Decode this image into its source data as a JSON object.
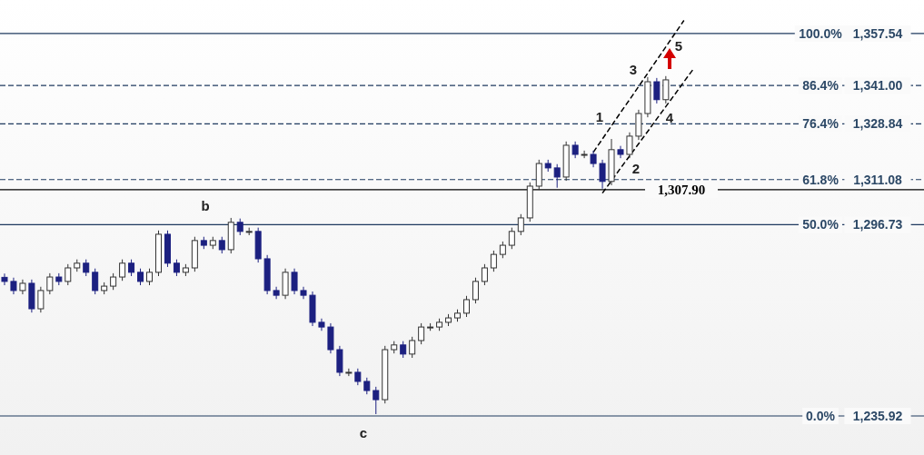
{
  "chart_data": {
    "type": "candlestick",
    "colors": [
      "#1c2080",
      "#1c2080",
      "#ffffff",
      "#1c2080",
      "#ffffff",
      "#ffffff",
      "#1c2080",
      "#ffffff",
      "#ffffff",
      "#1c2080",
      "#1c2080",
      "#ffffff",
      "#ffffff",
      "#ffffff",
      "#1c2080",
      "#1c2080",
      "#ffffff",
      "#ffffff",
      "#1c2080",
      "#1c2080",
      "#ffffff",
      "#ffffff",
      "#1c2080",
      "#ffffff",
      "#1c2080",
      "#ffffff",
      "#1c2080",
      "#ffffff",
      "#1c2080",
      "#1c2080",
      "#1c2080",
      "#ffffff",
      "#1c2080",
      "#1c2080",
      "#1c2080",
      "#1c2080",
      "#1c2080",
      "#1c2080",
      "#ffffff",
      "#1c2080",
      "#1c2080",
      "#1c2080",
      "#ffffff",
      "#ffffff",
      "#1c2080",
      "#ffffff",
      "#ffffff",
      "#ffffff",
      "#ffffff",
      "#ffffff",
      "#ffffff",
      "#ffffff",
      "#ffffff",
      "#ffffff",
      "#ffffff",
      "#ffffff",
      "#ffffff",
      "#ffffff",
      "#ffffff",
      "#ffffff",
      "#1c2080",
      "#1c2080",
      "#ffffff",
      "#1c2080",
      "#ffffff",
      "#1c2080",
      "#1c2080",
      "#ffffff",
      "#1c2080",
      "#ffffff",
      "#ffffff",
      "#ffffff",
      "#1c2080",
      "#ffffff",
      null,
      null,
      null,
      null,
      null,
      null,
      null,
      null,
      null,
      null,
      null,
      null,
      null,
      null,
      null,
      null,
      null,
      null,
      null,
      null,
      null,
      null,
      null,
      null,
      null,
      null,
      null,
      null
    ],
    "ylim": [
      1223.5,
      1368.2
    ],
    "tick_labels": "y",
    "yticks": [
      {
        "value": 1357.54,
        "label": "1,357.54"
      },
      {
        "value": 1341.0,
        "label": "1,341.00"
      },
      {
        "value": 1328.84,
        "label": "1,328.84"
      },
      {
        "value": 1311.08,
        "label": "1,311.08"
      },
      {
        "value": 1296.73,
        "label": "1,296.73"
      },
      {
        "value": 1235.92,
        "label": "1,235.92"
      }
    ],
    "categories": [
      null,
      null,
      null,
      null,
      null,
      null,
      null,
      null,
      null,
      null,
      null,
      null,
      null,
      null,
      null,
      null,
      null,
      null,
      null,
      null,
      null,
      null,
      null,
      null,
      null,
      null,
      null,
      null,
      null,
      null,
      null,
      null,
      null,
      null,
      null,
      null,
      null,
      null,
      null,
      null,
      null,
      null,
      null,
      null,
      null,
      null,
      null,
      null,
      null,
      null,
      null,
      null,
      null,
      null,
      null,
      null,
      null,
      null,
      null,
      null,
      null,
      null,
      null,
      null,
      null,
      null,
      null,
      null,
      null,
      null,
      null,
      null,
      null,
      null,
      null,
      null,
      null,
      null,
      null,
      null,
      null,
      null,
      null,
      null,
      null,
      null,
      null,
      null,
      null,
      null,
      null,
      null,
      null,
      null,
      null,
      null,
      null,
      null,
      null,
      null,
      null,
      null
    ],
    "ohlc": [
      [
        1280.0,
        1281.2,
        1277.5,
        1278.7
      ],
      [
        1278.7,
        1279.9,
        1274.6,
        1275.8
      ],
      [
        1275.8,
        1279.3,
        1274.6,
        1278.1
      ],
      [
        1278.1,
        1279.3,
        1268.8,
        1270.0
      ],
      [
        1270.0,
        1277.0,
        1268.8,
        1275.8
      ],
      [
        1275.8,
        1281.3,
        1274.6,
        1280.1
      ],
      [
        1280.1,
        1281.3,
        1277.5,
        1278.7
      ],
      [
        1278.7,
        1284.2,
        1277.5,
        1283.0
      ],
      [
        1283.0,
        1285.7,
        1281.8,
        1284.5
      ],
      [
        1284.5,
        1285.7,
        1280.4,
        1281.6
      ],
      [
        1281.6,
        1282.8,
        1274.6,
        1275.8
      ],
      [
        1275.8,
        1278.4,
        1274.6,
        1277.2
      ],
      [
        1277.2,
        1281.3,
        1276.0,
        1280.1
      ],
      [
        1280.1,
        1285.7,
        1278.9,
        1284.5
      ],
      [
        1284.5,
        1285.7,
        1280.4,
        1281.6
      ],
      [
        1281.6,
        1282.8,
        1277.5,
        1278.7
      ],
      [
        1278.7,
        1282.8,
        1277.5,
        1281.6
      ],
      [
        1281.6,
        1294.9,
        1280.4,
        1293.7
      ],
      [
        1293.7,
        1294.9,
        1283.3,
        1284.5
      ],
      [
        1284.5,
        1285.7,
        1280.4,
        1281.6
      ],
      [
        1281.6,
        1284.2,
        1280.4,
        1283.0
      ],
      [
        1283.0,
        1292.9,
        1281.8,
        1291.7
      ],
      [
        1291.7,
        1292.9,
        1289.0,
        1290.2
      ],
      [
        1290.2,
        1292.9,
        1289.0,
        1291.7
      ],
      [
        1291.7,
        1292.9,
        1287.6,
        1288.8
      ],
      [
        1288.8,
        1298.9,
        1287.6,
        1297.5
      ],
      [
        1297.5,
        1298.7,
        1293.4,
        1294.6
      ],
      [
        1294.6,
        1295.8,
        1293.4,
        1294.6
      ],
      [
        1294.6,
        1295.8,
        1284.7,
        1285.9
      ],
      [
        1285.9,
        1287.1,
        1274.6,
        1275.8
      ],
      [
        1275.8,
        1277.0,
        1273.1,
        1274.3
      ],
      [
        1274.3,
        1282.8,
        1273.1,
        1281.6
      ],
      [
        1281.6,
        1282.8,
        1274.6,
        1275.8
      ],
      [
        1275.8,
        1277.0,
        1273.1,
        1274.3
      ],
      [
        1274.3,
        1275.5,
        1264.5,
        1265.7
      ],
      [
        1265.7,
        1266.9,
        1263.0,
        1264.2
      ],
      [
        1264.2,
        1265.4,
        1255.8,
        1257.0
      ],
      [
        1257.0,
        1258.2,
        1248.6,
        1249.8
      ],
      [
        1249.8,
        1251.0,
        1248.6,
        1249.8
      ],
      [
        1249.8,
        1251.0,
        1245.7,
        1246.9
      ],
      [
        1246.9,
        1248.1,
        1242.8,
        1244.0
      ],
      [
        1244.0,
        1245.2,
        1236.5,
        1241.1
      ],
      [
        1241.1,
        1258.2,
        1239.9,
        1257.0
      ],
      [
        1257.0,
        1259.7,
        1255.8,
        1258.5
      ],
      [
        1258.5,
        1259.7,
        1254.4,
        1255.6
      ],
      [
        1255.6,
        1261.1,
        1254.4,
        1259.9
      ],
      [
        1259.9,
        1265.4,
        1258.7,
        1264.2
      ],
      [
        1264.2,
        1265.4,
        1263.0,
        1264.2
      ],
      [
        1264.2,
        1266.9,
        1263.0,
        1265.7
      ],
      [
        1265.7,
        1268.3,
        1264.5,
        1267.1
      ],
      [
        1267.1,
        1269.8,
        1265.9,
        1268.6
      ],
      [
        1268.6,
        1274.1,
        1267.4,
        1272.9
      ],
      [
        1272.9,
        1279.9,
        1271.7,
        1278.7
      ],
      [
        1278.7,
        1284.2,
        1277.5,
        1283.0
      ],
      [
        1283.0,
        1288.5,
        1281.8,
        1287.3
      ],
      [
        1287.3,
        1291.4,
        1286.1,
        1290.2
      ],
      [
        1290.2,
        1295.8,
        1289.0,
        1294.6
      ],
      [
        1294.6,
        1300.1,
        1293.4,
        1298.9
      ],
      [
        1298.9,
        1310.2,
        1297.7,
        1309.0
      ],
      [
        1309.0,
        1317.4,
        1307.8,
        1316.2
      ],
      [
        1316.2,
        1317.4,
        1313.6,
        1314.8
      ],
      [
        1314.8,
        1316.0,
        1308.5,
        1311.9
      ],
      [
        1311.9,
        1323.2,
        1310.7,
        1322.0
      ],
      [
        1322.0,
        1323.2,
        1317.9,
        1319.1
      ],
      [
        1319.1,
        1320.3,
        1317.9,
        1319.1
      ],
      [
        1319.1,
        1320.3,
        1315.0,
        1316.2
      ],
      [
        1316.2,
        1317.4,
        1308.2,
        1310.5
      ],
      [
        1310.5,
        1324.0,
        1309.3,
        1320.6
      ],
      [
        1320.6,
        1321.8,
        1317.9,
        1319.1
      ],
      [
        1319.1,
        1326.1,
        1317.9,
        1324.9
      ],
      [
        1324.9,
        1333.3,
        1323.7,
        1332.1
      ],
      [
        1332.1,
        1343.7,
        1330.9,
        1342.2
      ],
      [
        1342.2,
        1343.4,
        1335.3,
        1336.5
      ],
      [
        1336.5,
        1344.0,
        1335.3,
        1342.8
      ],
      null,
      null,
      null,
      null,
      null,
      null,
      null,
      null,
      null,
      null,
      null,
      null,
      null,
      null,
      null,
      null,
      null,
      null,
      null,
      null,
      null,
      null,
      null,
      null,
      null,
      null,
      null,
      null
    ],
    "series": [
      {
        "type": "line",
        "color": "#000000",
        "line_style": "dashed",
        "values": [
          null,
          null,
          null,
          null,
          null,
          null,
          null,
          null,
          null,
          null,
          null,
          null,
          null,
          null,
          null,
          null,
          null,
          null,
          null,
          null,
          null,
          null,
          null,
          null,
          null,
          null,
          null,
          null,
          null,
          null,
          null,
          null,
          null,
          null,
          null,
          null,
          null,
          null,
          null,
          null,
          null,
          null,
          null,
          null,
          null,
          null,
          null,
          null,
          null,
          null,
          null,
          null,
          null,
          null,
          null,
          null,
          null,
          null,
          null,
          null,
          null,
          null,
          null,
          null,
          null,
          1319.8,
          1324.0,
          1328.2,
          1332.4,
          1336.5,
          1340.7,
          1344.9,
          1349.1,
          1353.3,
          1357.5,
          1361.7,
          null,
          null,
          null,
          null,
          null,
          null,
          null,
          null,
          null,
          null,
          null,
          null,
          null,
          null,
          null,
          null,
          null,
          null,
          null,
          null,
          null,
          null,
          null,
          null,
          null,
          null
        ]
      },
      {
        "type": "line",
        "color": "#000000",
        "line_style": "dashed",
        "values": [
          null,
          null,
          null,
          null,
          null,
          null,
          null,
          null,
          null,
          null,
          null,
          null,
          null,
          null,
          null,
          null,
          null,
          null,
          null,
          null,
          null,
          null,
          null,
          null,
          null,
          null,
          null,
          null,
          null,
          null,
          null,
          null,
          null,
          null,
          null,
          null,
          null,
          null,
          null,
          null,
          null,
          null,
          null,
          null,
          null,
          null,
          null,
          null,
          null,
          null,
          null,
          null,
          null,
          null,
          null,
          null,
          null,
          null,
          null,
          null,
          null,
          null,
          null,
          null,
          null,
          null,
          1306.8,
          1310.7,
          1314.7,
          1318.6,
          1322.5,
          1326.4,
          1330.4,
          1334.3,
          1338.2,
          1342.2,
          1346.1,
          null,
          null,
          null,
          null,
          null,
          null,
          null,
          null,
          null,
          null,
          null,
          null,
          null,
          null,
          null,
          null,
          null,
          null,
          null,
          null,
          null,
          null,
          null,
          null,
          null
        ]
      }
    ],
    "ref_lines": [
      {
        "axis": "y",
        "value": 1357.54,
        "color": "#1f3a5f",
        "line_style": "solid"
      },
      {
        "axis": "y",
        "value": 1341.0,
        "color": "#1f3a5f",
        "line_style": "dashed"
      },
      {
        "axis": "y",
        "value": 1328.84,
        "color": "#1f3a5f",
        "line_style": "dashed"
      },
      {
        "axis": "y",
        "value": 1311.08,
        "color": "#1f3a5f",
        "line_style": "dashed"
      },
      {
        "axis": "y",
        "value": 1307.9,
        "label": "1,307.90",
        "color": "#000000",
        "line_style": "solid"
      },
      {
        "axis": "y",
        "value": 1296.73,
        "color": "#1f3a5f",
        "line_style": "solid"
      },
      {
        "axis": "y",
        "value": 1235.92,
        "color": "#1f3a5f",
        "line_style": "solid"
      }
    ],
    "annotations": [
      {
        "text": "100.0%",
        "y": 1357.54
      },
      {
        "text": "86.4%",
        "y": 1341.0
      },
      {
        "text": "76.4%",
        "y": 1328.84
      },
      {
        "text": "61.8%",
        "y": 1311.08
      },
      {
        "text": "50.0%",
        "y": 1296.73
      },
      {
        "text": "0.0%",
        "y": 1235.92
      },
      "b",
      "c",
      "1",
      "2",
      "3",
      "4",
      "5"
    ]
  }
}
